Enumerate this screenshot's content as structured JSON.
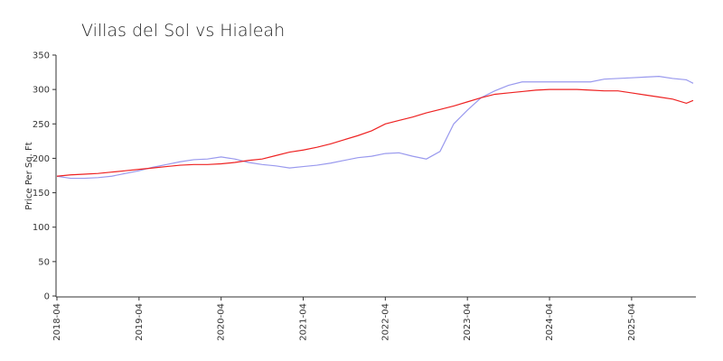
{
  "chart_data": {
    "type": "line",
    "title": "Villas del Sol vs Hialeah",
    "ylabel": "Price Per Sq. Ft",
    "x": [
      "2018-04",
      "2018-06",
      "2018-08",
      "2018-10",
      "2018-12",
      "2019-02",
      "2019-04",
      "2019-06",
      "2019-08",
      "2019-10",
      "2019-12",
      "2020-02",
      "2020-04",
      "2020-06",
      "2020-08",
      "2020-10",
      "2020-12",
      "2021-02",
      "2021-04",
      "2021-06",
      "2021-08",
      "2021-10",
      "2021-12",
      "2022-02",
      "2022-04",
      "2022-06",
      "2022-08",
      "2022-10",
      "2022-12",
      "2023-02",
      "2023-04",
      "2023-06",
      "2023-08",
      "2023-10",
      "2023-12",
      "2024-02",
      "2024-04",
      "2024-06",
      "2024-08",
      "2024-10",
      "2024-12",
      "2025-02",
      "2025-04",
      "2025-06",
      "2025-08",
      "2025-10",
      "2025-12",
      "2026-01"
    ],
    "series": [
      {
        "color": "#9999ee",
        "values": [
          174,
          171,
          171,
          172,
          174,
          178,
          182,
          187,
          191,
          195,
          198,
          199,
          202,
          199,
          194,
          191,
          189,
          186,
          188,
          190,
          193,
          197,
          201,
          203,
          207,
          208,
          203,
          199,
          210,
          250,
          270,
          288,
          298,
          306,
          311,
          311,
          311,
          311,
          311,
          311,
          315,
          316,
          317,
          318,
          319,
          316,
          314,
          309
        ]
      },
      {
        "color": "#ee2222",
        "values": [
          174,
          176,
          177,
          178,
          180,
          182,
          184,
          186,
          188,
          190,
          191,
          191,
          192,
          194,
          197,
          199,
          204,
          209,
          212,
          216,
          221,
          227,
          233,
          240,
          250,
          255,
          260,
          266,
          271,
          276,
          282,
          288,
          293,
          295,
          297,
          299,
          300,
          300,
          300,
          299,
          298,
          298,
          295,
          292,
          289,
          286,
          280,
          284
        ]
      }
    ],
    "xlim": [
      "2018-04",
      "2026-01"
    ],
    "xticks": [
      "2018-04",
      "2019-04",
      "2020-04",
      "2021-04",
      "2022-04",
      "2023-04",
      "2024-04",
      "2025-04"
    ],
    "ylim": [
      0,
      350
    ],
    "yticks": [
      0,
      50,
      100,
      150,
      200,
      250,
      300,
      350
    ],
    "grid": false
  }
}
